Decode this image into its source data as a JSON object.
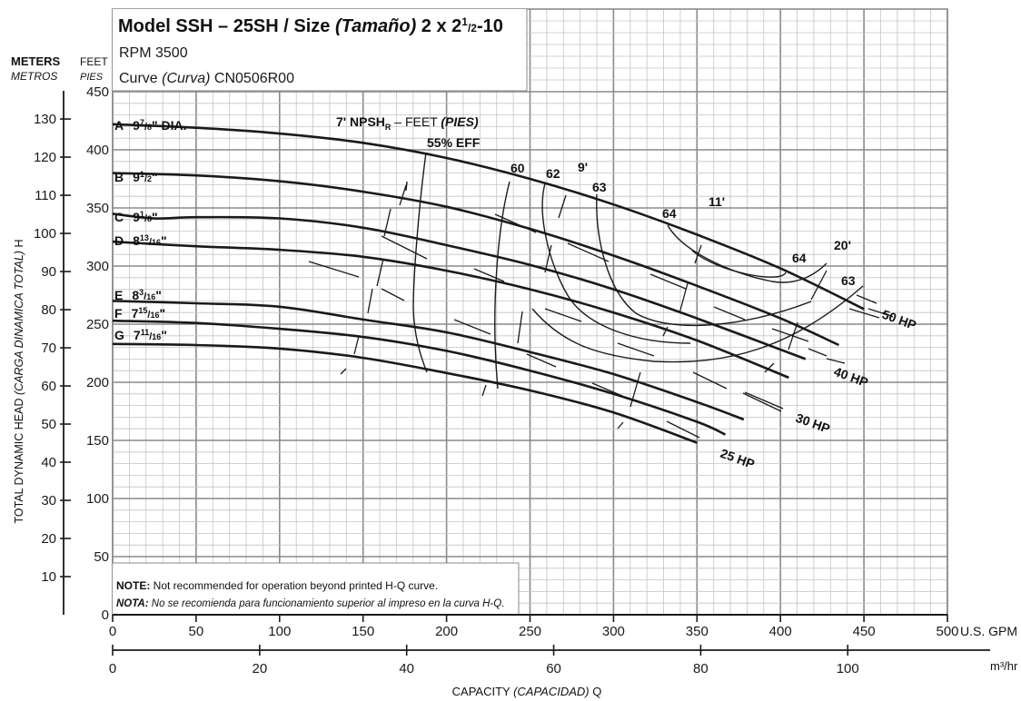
{
  "header": {
    "model_prefix": "Model SSH – 25SH / Size ",
    "model_size_word": "(Tamaño)",
    "model_size": " 2 x 2",
    "model_size_sup": "1",
    "model_size_sub": "/2",
    "model_size_end": "-10",
    "rpm": "RPM 3500",
    "curve_prefix": "Curve ",
    "curve_word": "(Curva)",
    "curve_id": " CN0506R00"
  },
  "axes": {
    "meters_label": "METERS",
    "metros_label": "METROS",
    "feet_label": "FEET",
    "pies_label": "PIES",
    "y_title_a": "TOTAL DYNAMIC HEAD ",
    "y_title_b": "(CARGA DINAMICA TOTAL)",
    "y_title_c": " H",
    "gpm_unit": "U.S. GPM",
    "m3_unit": "m³/hr",
    "x_title_a": "CAPACITY ",
    "x_title_b": "(CAPACIDAD)",
    "x_title_c": " Q"
  },
  "note": {
    "en_bold": "NOTE:",
    "en_text": " Not recommended for operation beyond printed H-Q curve.",
    "es_bold": "NOTA:",
    "es_text": " No se recomienda para funcionamiento superior al impreso en la curva H-Q."
  },
  "npsh_title": {
    "a": "7' NPSH",
    "sub": "R",
    "b": " – FEET ",
    "c": "(PIES)"
  },
  "impellers": [
    {
      "letter": "A",
      "whole": "9",
      "num": "7",
      "den": "8",
      "tail": "\" DIA."
    },
    {
      "letter": "B",
      "whole": "9",
      "num": "1",
      "den": "2",
      "tail": "\""
    },
    {
      "letter": "C",
      "whole": "9",
      "num": "1",
      "den": "8",
      "tail": "\""
    },
    {
      "letter": "D",
      "whole": "8",
      "num": "13",
      "den": "16",
      "tail": "\""
    },
    {
      "letter": "E",
      "whole": "8",
      "num": "3",
      "den": "16",
      "tail": "\""
    },
    {
      "letter": "F",
      "whole": "7",
      "num": "15",
      "den": "16",
      "tail": "\""
    },
    {
      "letter": "G",
      "whole": "7",
      "num": "11",
      "den": "16",
      "tail": "\""
    }
  ],
  "annotations": {
    "eff55": "55% EFF",
    "eff60": "60",
    "eff62": "62",
    "eff63a": "63",
    "eff64a": "64",
    "eff64b": "64",
    "eff63b": "63",
    "npsh9": "9'",
    "npsh11": "11'",
    "npsh20": "20'",
    "hp50": "50 HP",
    "hp40": "40 HP",
    "hp30": "30 HP",
    "hp25": "25 HP"
  },
  "chart_data": {
    "type": "line",
    "title": "Model SSH – 25SH / Size (Tamaño) 2 x 2 1/2-10",
    "subtitle": "RPM 3500 · Curve (Curva) CN0506R00",
    "xlabel": "CAPACITY (CAPACIDAD) Q",
    "ylabel": "TOTAL DYNAMIC HEAD (CARGA DINAMICA TOTAL) H",
    "x_unit": "U.S. GPM",
    "y_unit": "FEET",
    "xlim": [
      0,
      500
    ],
    "ylim": [
      0,
      450
    ],
    "x_ticks": [
      "0",
      "50",
      "100",
      "150",
      "200",
      "250",
      "300",
      "350",
      "400",
      "450",
      "500"
    ],
    "y_ticks_feet": [
      "0",
      "50",
      "100",
      "150",
      "200",
      "250",
      "300",
      "350",
      "400",
      "450"
    ],
    "y_ticks_meters": [
      "10",
      "20",
      "30",
      "40",
      "50",
      "60",
      "70",
      "80",
      "90",
      "100",
      "110",
      "120",
      "130"
    ],
    "x2_unit": "m³/hr",
    "x2_ticks": [
      "0",
      "20",
      "40",
      "60",
      "80",
      "100"
    ],
    "grid": true,
    "series": [
      {
        "name": "A 9 7/8\" DIA.",
        "x": [
          0,
          50,
          100,
          150,
          200,
          250,
          300,
          350,
          400,
          450
        ],
        "y": [
          422,
          419,
          414,
          406,
          393,
          375,
          353,
          327,
          298,
          263
        ]
      },
      {
        "name": "B 9 1/2\"",
        "x": [
          0,
          50,
          100,
          150,
          200,
          250,
          300,
          350,
          400,
          435
        ],
        "y": [
          380,
          378,
          373,
          364,
          351,
          332,
          309,
          283,
          255,
          232
        ]
      },
      {
        "name": "C 9 1/8\"",
        "x": [
          0,
          25,
          50,
          100,
          150,
          200,
          250,
          300,
          350,
          415
        ],
        "y": [
          345,
          341,
          342,
          341,
          333,
          318,
          301,
          280,
          255,
          220
        ]
      },
      {
        "name": "D 8 13/16\"",
        "x": [
          0,
          50,
          100,
          150,
          200,
          250,
          300,
          350,
          405
        ],
        "y": [
          321,
          317,
          314,
          308,
          296,
          280,
          260,
          236,
          204
        ]
      },
      {
        "name": "E 8 3/16\"",
        "x": [
          0,
          50,
          100,
          150,
          200,
          250,
          300,
          350,
          378
        ],
        "y": [
          270,
          268,
          265,
          254,
          243,
          226,
          207,
          183,
          168
        ]
      },
      {
        "name": "F 7 15/16\"",
        "x": [
          0,
          50,
          100,
          150,
          200,
          250,
          300,
          350,
          367
        ],
        "y": [
          253,
          251,
          246,
          239,
          227,
          210,
          190,
          166,
          155
        ]
      },
      {
        "name": "G 7 11/16\"",
        "x": [
          0,
          50,
          100,
          150,
          200,
          250,
          300,
          350
        ],
        "y": [
          233,
          232,
          229,
          221,
          208,
          193,
          174,
          148
        ]
      }
    ]
  }
}
